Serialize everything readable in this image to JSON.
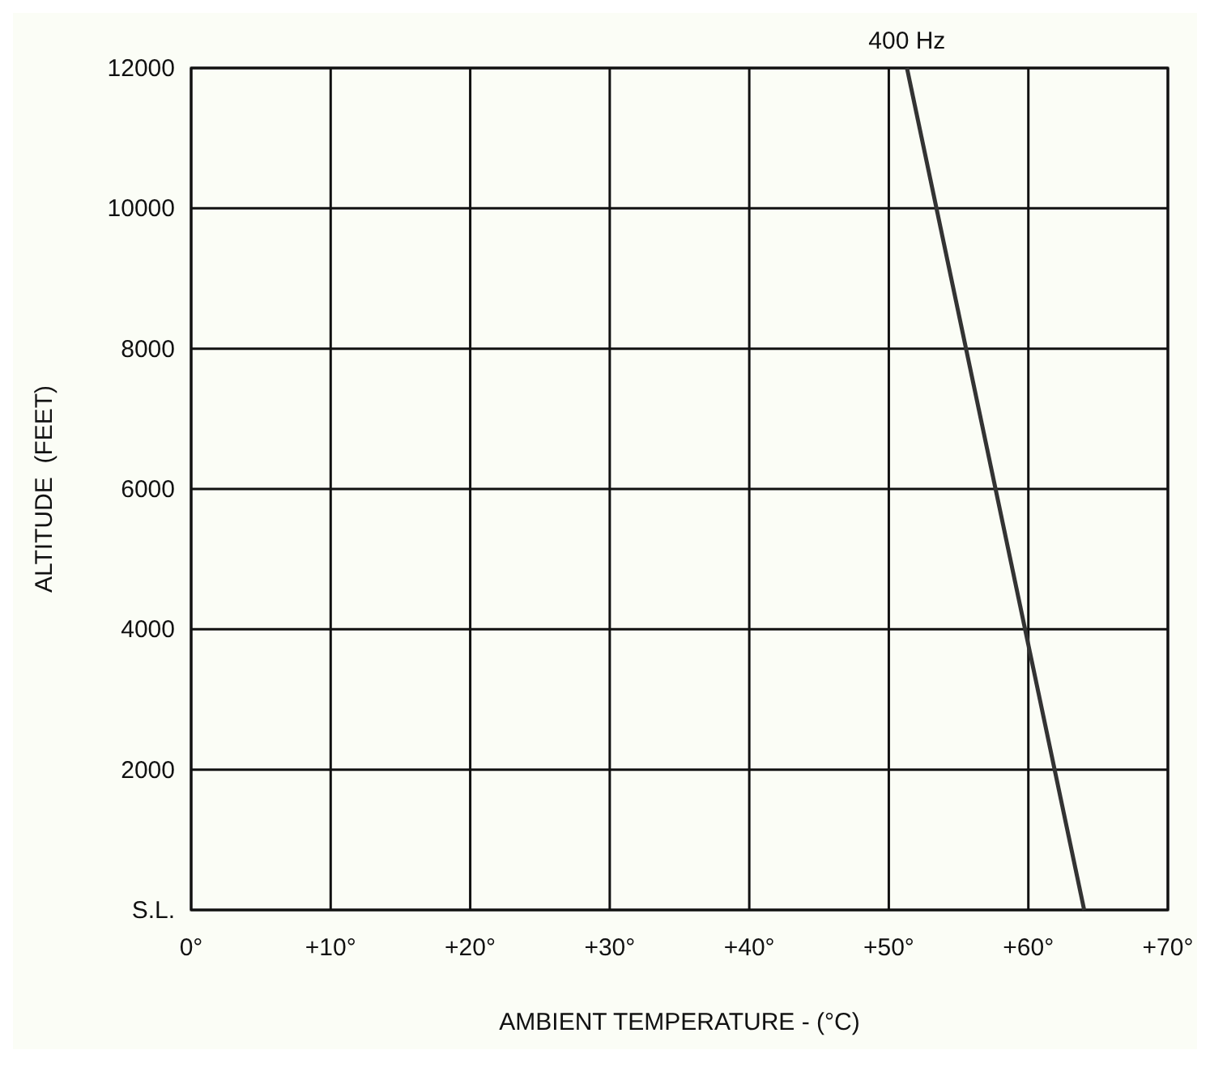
{
  "chart_data": {
    "type": "line",
    "xlabel": "AMBIENT TEMPERATURE - (°C)",
    "ylabel": "ALTITUDE  (FEET)",
    "series": [
      {
        "name": "400 Hz",
        "color": "#333333",
        "x": [
          64,
          51.3
        ],
        "values": [
          0,
          12000
        ]
      }
    ],
    "xlim": [
      0,
      70
    ],
    "xticks": [
      {
        "value": 0,
        "label": "0°"
      },
      {
        "value": 10,
        "label": "+10°"
      },
      {
        "value": 20,
        "label": "+20°"
      },
      {
        "value": 30,
        "label": "+30°"
      },
      {
        "value": 40,
        "label": "+40°"
      },
      {
        "value": 50,
        "label": "+50°"
      },
      {
        "value": 60,
        "label": "+60°"
      },
      {
        "value": 70,
        "label": "+70°"
      }
    ],
    "ylim": [
      0,
      12000
    ],
    "yticks": [
      {
        "value": 0,
        "label": "S.L."
      },
      2000,
      4000,
      6000,
      8000,
      10000,
      12000
    ],
    "grid": true,
    "marker": "none",
    "line_style": "solid"
  }
}
